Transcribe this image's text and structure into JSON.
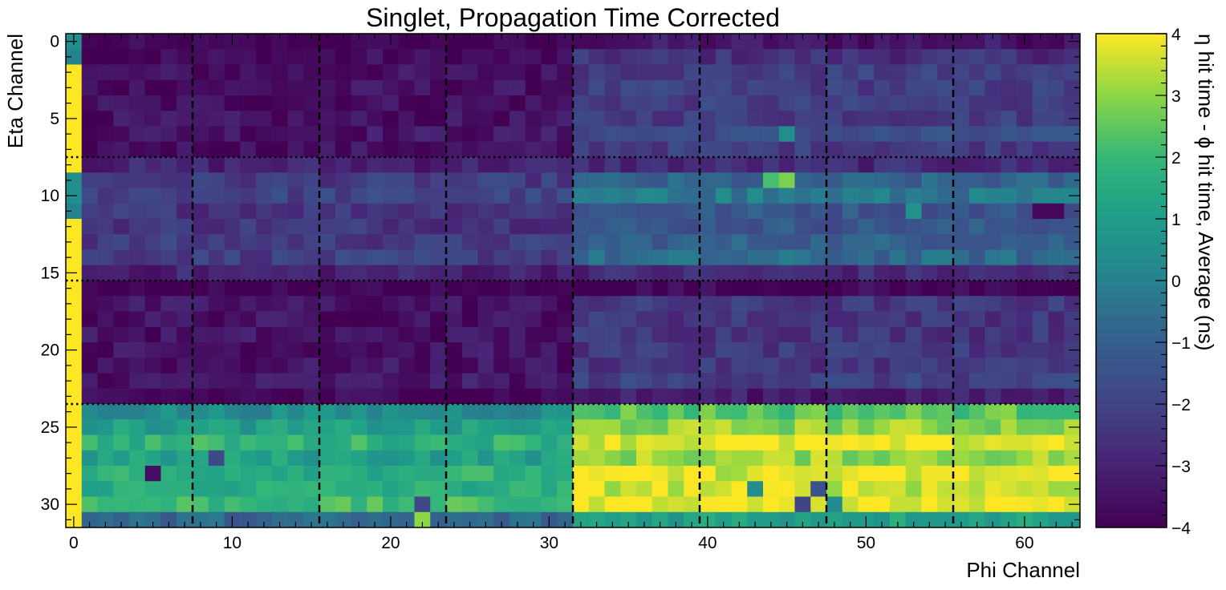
{
  "chart_data": {
    "type": "heatmap",
    "title": "Singlet, Propagation Time Corrected",
    "xlabel": "Phi Channel",
    "ylabel": "Eta Channel",
    "colorbar_label": "η hit time - ϕ hit time, Average (ns)",
    "colormap": "viridis",
    "xlim": [
      -0.5,
      63.5
    ],
    "ylim": [
      31.5,
      -0.5
    ],
    "vlim": [
      -4,
      4
    ],
    "x_ticks": [
      0,
      10,
      20,
      30,
      40,
      50,
      60
    ],
    "y_ticks": [
      0,
      5,
      10,
      15,
      20,
      25,
      30
    ],
    "colorbar_ticks": [
      "−4",
      "−3",
      "−2",
      "−1",
      "0",
      "1",
      "2",
      "3",
      "4"
    ],
    "dashed_vertical_lines_x": [
      7.5,
      15.5,
      23.5,
      31.5,
      39.5,
      47.5,
      55.5
    ],
    "dotted_horizontal_lines_y": [
      7.5,
      15.5,
      23.5
    ],
    "grid": false,
    "n_phi": 64,
    "n_eta": 32,
    "pattern": {
      "column0_by_eta": [
        0.5,
        0.0,
        4.0,
        4.0,
        4.0,
        4.0,
        4.0,
        4.0,
        4.0,
        0.5,
        0.5,
        0.0,
        4.0,
        4.0,
        4.0,
        4.0,
        4.0,
        4.0,
        4.0,
        4.0,
        4.0,
        4.0,
        4.0,
        4.0,
        4.0,
        4.0,
        4.0,
        4.0,
        4.0,
        4.0,
        4.0,
        4.0
      ],
      "block_means": {
        "phi_0_31": {
          "eta_0_7": -3.6,
          "eta_8_15": -2.4,
          "eta_16_23": -3.5,
          "eta_24_31": 1.4
        },
        "phi_32_63": {
          "eta_0_7": -2.2,
          "eta_8_15": -1.3,
          "eta_16_23": -2.4,
          "eta_24_31": 3.4
        }
      },
      "row_offsets_by_eta": [
        -1.2,
        -0.4,
        0.0,
        0.0,
        0.0,
        0.0,
        0.5,
        0.0,
        -1.5,
        0.3,
        1.0,
        0.0,
        0.0,
        0.3,
        0.6,
        -1.5,
        -1.5,
        0.0,
        0.0,
        0.0,
        0.0,
        0.0,
        0.3,
        -0.8,
        -1.0,
        -0.4,
        0.4,
        -0.3,
        0.3,
        0.2,
        0.6,
        -2.2
      ],
      "highlights": [
        {
          "eta": 9,
          "phi": 44,
          "value": 2.2
        },
        {
          "eta": 9,
          "phi": 45,
          "value": 2.8
        },
        {
          "eta": 10,
          "phi": 43,
          "value": 0.4
        },
        {
          "eta": 10,
          "phi": 41,
          "value": 0.4
        },
        {
          "eta": 6,
          "phi": 45,
          "value": 0.4
        },
        {
          "eta": 28,
          "phi": 5,
          "value": -3.6
        },
        {
          "eta": 29,
          "phi": 43,
          "value": 0.4
        },
        {
          "eta": 29,
          "phi": 47,
          "value": -1.5
        },
        {
          "eta": 30,
          "phi": 22,
          "value": -1.8
        },
        {
          "eta": 30,
          "phi": 46,
          "value": -2.0
        },
        {
          "eta": 30,
          "phi": 48,
          "value": 0.3
        },
        {
          "eta": 31,
          "phi": 22,
          "value": 3.0
        },
        {
          "eta": 27,
          "phi": 9,
          "value": -1.8
        },
        {
          "eta": 11,
          "phi": 61,
          "value": -3.8
        },
        {
          "eta": 11,
          "phi": 62,
          "value": -3.8
        },
        {
          "eta": 11,
          "phi": 53,
          "value": 0.6
        }
      ]
    }
  }
}
